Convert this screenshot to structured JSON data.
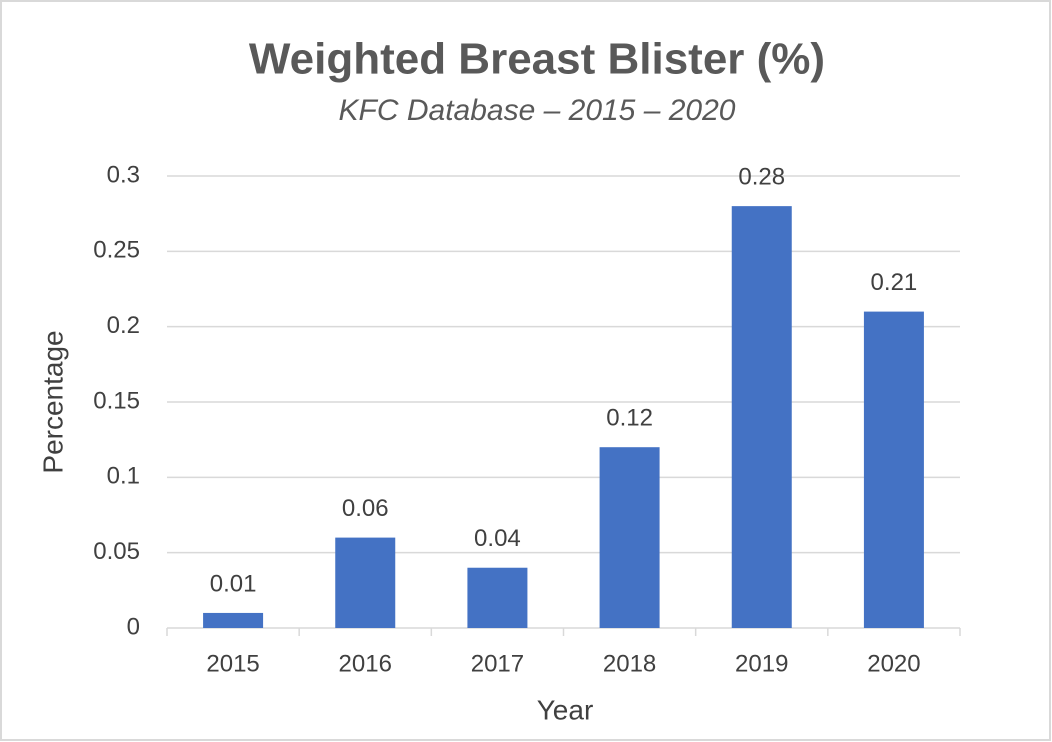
{
  "chart_data": {
    "type": "bar",
    "title": "Weighted Breast Blister (%)",
    "subtitle": "KFC Database – 2015 – 2020",
    "x_label": "Year",
    "y_label": "Percentage",
    "categories": [
      "2015",
      "2016",
      "2017",
      "2018",
      "2019",
      "2020"
    ],
    "values": [
      0.01,
      0.06,
      0.04,
      0.12,
      0.28,
      0.21
    ],
    "color": "#4472c4",
    "ylim": [
      0,
      0.3
    ],
    "yticks": [
      0,
      0.05,
      0.1,
      0.15,
      0.2,
      0.25,
      0.3
    ],
    "grid": true
  }
}
